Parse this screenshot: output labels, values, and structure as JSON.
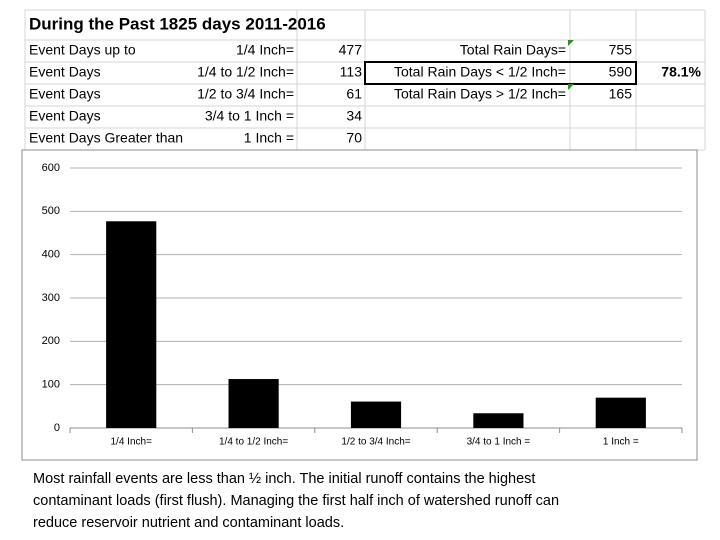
{
  "sheet": {
    "title": "During the Past 1825 days  2011-2016",
    "rows": [
      {
        "label": "Event Days up to",
        "range": "1/4 Inch=",
        "count": 477,
        "summary_label": "Total Rain Days=",
        "summary_value": 755
      },
      {
        "label": "Event Days",
        "range": "1/4 to 1/2 Inch=",
        "count": 113,
        "summary_label": "Total Rain Days < 1/2 Inch=",
        "summary_value": 590,
        "percent": "78.1%"
      },
      {
        "label": "Event Days",
        "range": "1/2 to 3/4 Inch=",
        "count": 61,
        "summary_label": "Total Rain Days > 1/2 Inch=",
        "summary_value": 165
      },
      {
        "label": "Event Days",
        "range": "3/4 to 1 Inch =",
        "count": 34
      },
      {
        "label": "Event Days Greater than",
        "range": "1 Inch =",
        "count": 70
      }
    ]
  },
  "chart_data": {
    "type": "bar",
    "categories": [
      "1/4 Inch=",
      "1/4 to 1/2 Inch=",
      "1/2 to 3/4 Inch=",
      "3/4 to 1 Inch =",
      "1 Inch ="
    ],
    "values": [
      477,
      113,
      61,
      34,
      70
    ],
    "color": "#000000",
    "ylim": [
      0,
      600
    ],
    "yticks": [
      0,
      100,
      200,
      300,
      400,
      500,
      600
    ],
    "grid": true
  },
  "caption": [
    "Most rainfall events are less than ½ inch.  The initial runoff contains the highest",
    "contaminant loads (first flush).  Managing the first half inch of watershed runoff can",
    "reduce reservoir nutrient and contaminant loads."
  ]
}
